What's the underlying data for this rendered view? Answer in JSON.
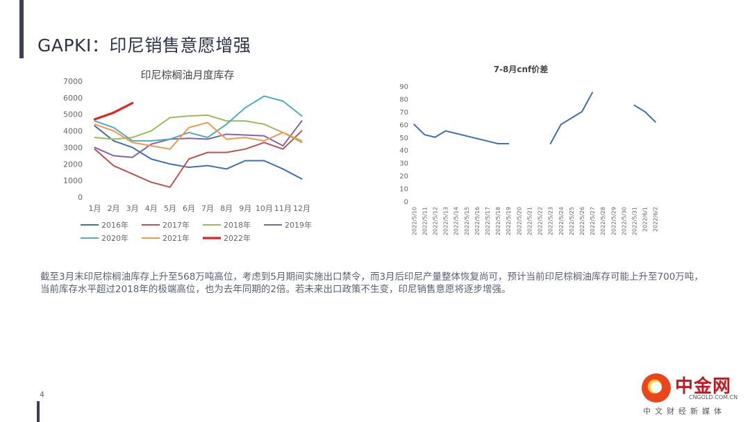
{
  "slide": {
    "title": "GAPKI：印尼销售意愿增强",
    "body": "截至3月末印尼棕榈油库存上升至568万吨高位，考虑到5月期间实施出口禁令，而3月后印尼产量整体恢复尚可，预计当前印尼棕榈油库存可能上升至700万吨，当前库存水平超过2018年的极端高位，也为去年同期的2倍。若未来出口政策不生变，印尼销售意愿将逐步增强。",
    "page_number": "4",
    "logo": {
      "name_cn": "中金网",
      "domain": "CNGOLD.COM.CN",
      "tagline": "中文财经新媒体"
    }
  },
  "chart_data": [
    {
      "type": "line",
      "title": "印尼棕榈油月度库存",
      "categories": [
        "1月",
        "2月",
        "3月",
        "4月",
        "5月",
        "6月",
        "7月",
        "8月",
        "9月",
        "10月",
        "11月",
        "12月"
      ],
      "ylim": [
        0,
        7000
      ],
      "yticks": [
        0,
        1000,
        2000,
        3000,
        4000,
        5000,
        6000,
        7000
      ],
      "grid": false,
      "legend_position": "bottom",
      "series": [
        {
          "name": "2016年",
          "color": "#3d6fb6",
          "width": 2,
          "values": [
            4300,
            3400,
            3000,
            2300,
            2000,
            1800,
            1900,
            1700,
            2200,
            2200,
            1700,
            1100
          ]
        },
        {
          "name": "2017年",
          "color": "#c0504d",
          "width": 2,
          "values": [
            2900,
            1900,
            1400,
            900,
            600,
            2300,
            2700,
            2700,
            2900,
            3300,
            2900,
            4000
          ]
        },
        {
          "name": "2018年",
          "color": "#9bbb59",
          "width": 2,
          "values": [
            3600,
            3500,
            3600,
            4000,
            4800,
            4900,
            4950,
            4600,
            4600,
            4400,
            3900,
            3300
          ]
        },
        {
          "name": "2019年",
          "color": "#7f63a8",
          "width": 2,
          "values": [
            3000,
            2500,
            2400,
            3200,
            3500,
            3550,
            3500,
            3800,
            3750,
            3700,
            3100,
            4600
          ]
        },
        {
          "name": "2020年",
          "color": "#4bacc6",
          "width": 2,
          "values": [
            4600,
            4200,
            3400,
            3400,
            3500,
            3900,
            3600,
            4400,
            5400,
            6100,
            5800,
            4900
          ]
        },
        {
          "name": "2021年",
          "color": "#f79646",
          "width": 2,
          "values": [
            4400,
            4000,
            3300,
            3100,
            2900,
            4200,
            4500,
            3500,
            3600,
            3400,
            3900,
            3400
          ]
        },
        {
          "name": "2022年",
          "color": "#e3231b",
          "width": 3.2,
          "values": [
            4700,
            5100,
            5680,
            null,
            null,
            null,
            null,
            null,
            null,
            null,
            null,
            null
          ]
        }
      ]
    },
    {
      "type": "line",
      "title": "7-8月cnf价差",
      "categories": [
        "2022/5/10",
        "2022/5/11",
        "2022/5/12",
        "2022/5/13",
        "2022/5/14",
        "2022/5/15",
        "2022/5/16",
        "2022/5/17",
        "2022/5/18",
        "2022/5/19",
        "2022/5/20",
        "2022/5/21",
        "2022/5/22",
        "2022/5/23",
        "2022/5/24",
        "2022/5/25",
        "2022/5/26",
        "2022/5/27",
        "2022/5/28",
        "2022/5/29",
        "2022/5/30",
        "2022/5/31",
        "2022/6/1",
        "2022/6/2"
      ],
      "ylim": [
        0,
        90
      ],
      "yticks": [
        0,
        10,
        20,
        30,
        40,
        50,
        60,
        70,
        80,
        90
      ],
      "grid": false,
      "legend_position": "none",
      "series": [
        {
          "color": "#3d6fb6",
          "width": 2,
          "values": [
            60,
            52,
            50,
            55,
            53,
            51,
            49,
            47,
            45,
            45,
            null,
            null,
            null,
            45,
            60,
            65,
            70,
            85,
            null,
            null,
            null,
            75,
            70,
            62
          ]
        }
      ]
    }
  ]
}
